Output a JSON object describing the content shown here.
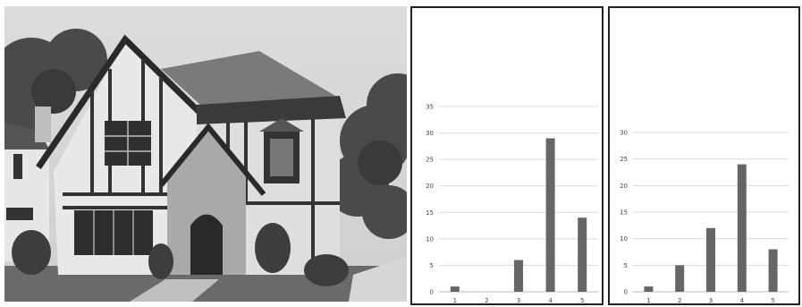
{
  "chart_data": [
    {
      "type": "bar",
      "categories": [
        "1",
        "2",
        "3",
        "4",
        "5"
      ],
      "values": [
        1,
        0,
        6,
        29,
        14
      ],
      "ylim": [
        0,
        35
      ],
      "yticks": [
        0,
        5,
        10,
        15,
        20,
        25,
        30,
        35
      ],
      "grid": true,
      "bar_color": "#666666",
      "title": "",
      "xlabel": "",
      "ylabel": ""
    },
    {
      "type": "bar",
      "categories": [
        "1",
        "2",
        "3",
        "4",
        "5"
      ],
      "values": [
        1,
        5,
        12,
        24,
        8
      ],
      "ylim": [
        0,
        30
      ],
      "yticks": [
        0,
        5,
        10,
        15,
        20,
        25,
        30
      ],
      "grid": true,
      "bar_color": "#666666",
      "title": "",
      "xlabel": "",
      "ylabel": ""
    }
  ]
}
